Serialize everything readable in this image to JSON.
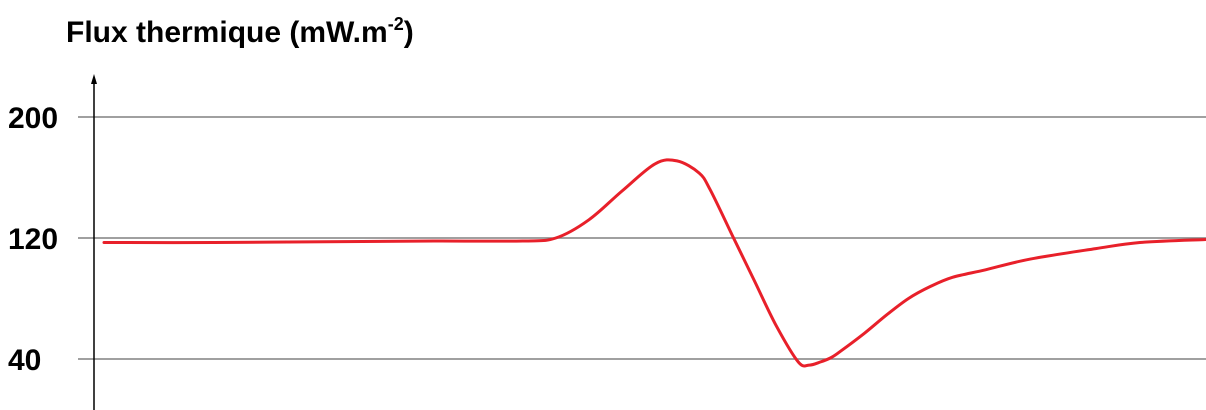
{
  "chart_data": {
    "type": "line",
    "title": "",
    "xlabel": "",
    "ylabel": "Flux thermique (mW.m",
    "ylabel_exponent": "-2",
    "ylabel_suffix": ")",
    "y_ticks": [
      200,
      120,
      40
    ],
    "ylim": [
      10,
      240
    ],
    "xlim": [
      0,
      100
    ],
    "grid": true,
    "series": [
      {
        "color": "#e8202a",
        "x": [
          0,
          10,
          20,
          30,
          38,
          41,
          44,
          47,
          50,
          52,
          54,
          55,
          57,
          59,
          61,
          63,
          64,
          65,
          66,
          67,
          69,
          71,
          73,
          75,
          77,
          80,
          84,
          90,
          94,
          100
        ],
        "y": [
          117,
          117,
          117.5,
          118,
          118,
          120,
          132,
          151,
          169,
          171,
          163,
          152,
          122,
          92,
          62,
          38,
          36,
          38,
          41,
          46,
          57,
          69,
          80,
          88,
          94,
          99,
          106,
          113,
          117,
          119
        ]
      }
    ]
  },
  "colors": {
    "series": "#e8202a",
    "grid": "#808080",
    "axis": "#000000"
  }
}
